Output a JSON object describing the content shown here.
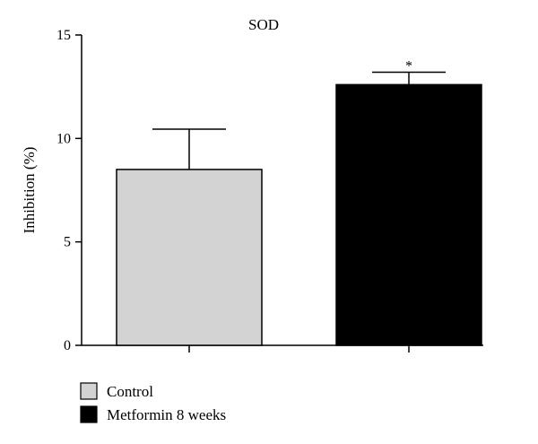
{
  "chart_data": {
    "type": "bar",
    "title": "SOD",
    "xlabel": "",
    "ylabel": "Inhibition (%)",
    "ylim": [
      0,
      15
    ],
    "yticks": [
      0,
      5,
      10,
      15
    ],
    "categories": [
      "Control",
      "Metformin 8 weeks"
    ],
    "values": [
      8.5,
      12.6
    ],
    "errors": [
      1.95,
      0.6
    ],
    "significance": [
      "",
      "*"
    ],
    "colors": [
      "#d3d3d3",
      "#000000"
    ],
    "grid": false,
    "legend_position": "bottom-left",
    "legend": [
      {
        "label": "Control",
        "color": "#d3d3d3"
      },
      {
        "label": "Metformin 8 weeks",
        "color": "#000000"
      }
    ]
  }
}
